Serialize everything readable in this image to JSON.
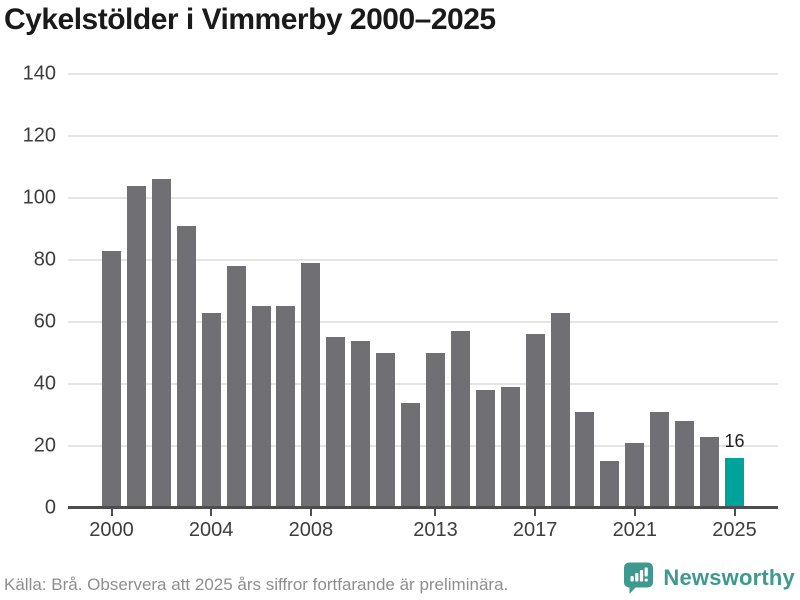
{
  "title": "Cykelstölder i Vimmerby 2000–2025",
  "footer": {
    "source_note": "Källa: Brå. Observera att 2025 års siffror fortfarande är preliminära.",
    "brand": "Newsworthy"
  },
  "colors": {
    "title": "#1a1a1a",
    "bar": "#6f6f74",
    "highlight_bar": "#00a39b",
    "gridline": "#e5e5e5",
    "axis": "#4d4d4d",
    "tick_label": "#3d3d3d",
    "annotation": "#1f1f1f",
    "source_text": "#8e8e8e",
    "brand_teal": "#3f998f"
  },
  "chart_data": {
    "type": "bar",
    "title": "Cykelstölder i Vimmerby 2000–2025",
    "categories": [
      2000,
      2001,
      2002,
      2003,
      2004,
      2005,
      2006,
      2007,
      2008,
      2009,
      2010,
      2011,
      2012,
      2013,
      2014,
      2015,
      2016,
      2017,
      2018,
      2019,
      2020,
      2021,
      2022,
      2023,
      2024,
      2025
    ],
    "values": [
      83,
      104,
      106,
      91,
      63,
      78,
      65,
      65,
      79,
      55,
      54,
      50,
      34,
      50,
      57,
      38,
      39,
      56,
      63,
      31,
      15,
      21,
      31,
      28,
      23,
      16
    ],
    "highlight_index": 25,
    "annotation": {
      "index": 25,
      "text": "16"
    },
    "xlabel": "",
    "ylabel": "",
    "ylim": [
      0,
      140
    ],
    "yticks": [
      0,
      20,
      40,
      60,
      80,
      100,
      120,
      140
    ],
    "xtick_years": [
      2000,
      2004,
      2008,
      2013,
      2017,
      2021,
      2025
    ],
    "grid": true,
    "legend": false
  }
}
